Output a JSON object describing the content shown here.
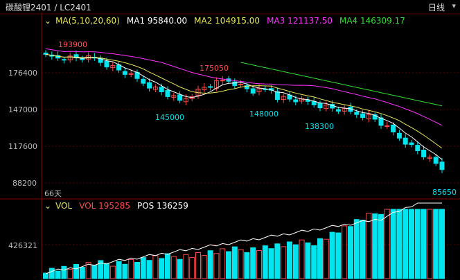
{
  "header": {
    "title": "碳酸锂2401 / LC2401",
    "period": "日线",
    "menu_icon": "chevron-down-icon"
  },
  "ma_legend": {
    "collapse_icon": "chevron-down-icon",
    "label": "MA(5,10,20,60)",
    "ma1": "MA1 95840.00",
    "ma2": "MA2 104915.00",
    "ma3": "MA3 121137.50",
    "ma4": "MA4 146309.17"
  },
  "vol_legend": {
    "collapse_icon": "chevron-down-icon",
    "label": "VOL",
    "vol": "VOL 195285",
    "pos": "POS 136259"
  },
  "price_axis": [
    "176400",
    "147000",
    "117600",
    "88200"
  ],
  "volume_axis": [
    "426321"
  ],
  "annotations": {
    "high_left": "193900",
    "peak": "175050",
    "low1": "145000",
    "low2": "148000",
    "low3": "138300",
    "low_last": "85650",
    "bars_count": "66天"
  },
  "colors": {
    "up": "#ff4a4a",
    "down": "#00e5ee",
    "ma1": "#ffffff",
    "ma2": "#e8e85a",
    "ma3": "#ff33ff",
    "ma4": "#33dd33",
    "grid": "#5a0000"
  }
}
